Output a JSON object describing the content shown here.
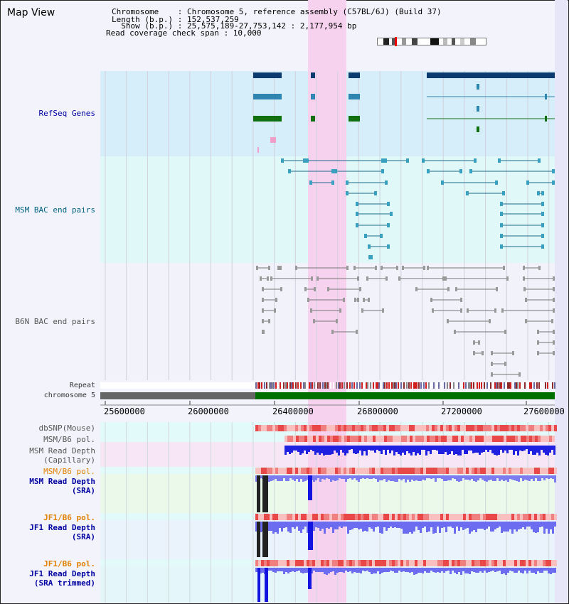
{
  "view_title": "Map View",
  "info": {
    "chromosome": "Chromosome    : Chromosome 5, reference assembly (C57BL/6J) (Build 37)",
    "length": "Length (b.p.) : 152,537,259",
    "show": "  Show (b.p.) : 25,575,189-27,753,142 : 2,177,954 bp",
    "coverage": "Read coverage check span : 10,000"
  },
  "tracks": {
    "refseq": "RefSeq Genes",
    "msm_bac": "MSM BAC end pairs",
    "b6n_bac": "B6N BAC end pairs",
    "repeat": "Repeat",
    "chromosome": "chromosome 5",
    "dbsnp": "dbSNP(Mouse)",
    "msm_b6_pol_1": "MSM/B6 pol.",
    "msm_depth_cap": "MSM Read Depth\n(Capillary)",
    "msm_b6_pol_2": "MSM/B6 pol.",
    "msm_depth_sra": "MSM Read Depth\n(SRA)",
    "jf1_b6_pol_1": "JF1/B6 pol.",
    "jf1_depth_sra": "JF1 Read Depth\n(SRA)",
    "jf1_b6_pol_2": "JF1/B6 pol.",
    "jf1_depth_trim": "JF1 Read Depth\n(SRA trimmed)"
  },
  "axis": {
    "ticks": [
      "25600000",
      "26000000",
      "26400000",
      "26800000",
      "27200000",
      "27600000"
    ]
  },
  "colors": {
    "refseq_bg": "#d6eef9",
    "msm_bg": "#e0f8f8",
    "highlight": "#f6d2ee",
    "chromosome_gray": "#666666",
    "chromosome_green": "#007000",
    "depth_blue": "#2020e0",
    "pol_red": "#e84040"
  }
}
